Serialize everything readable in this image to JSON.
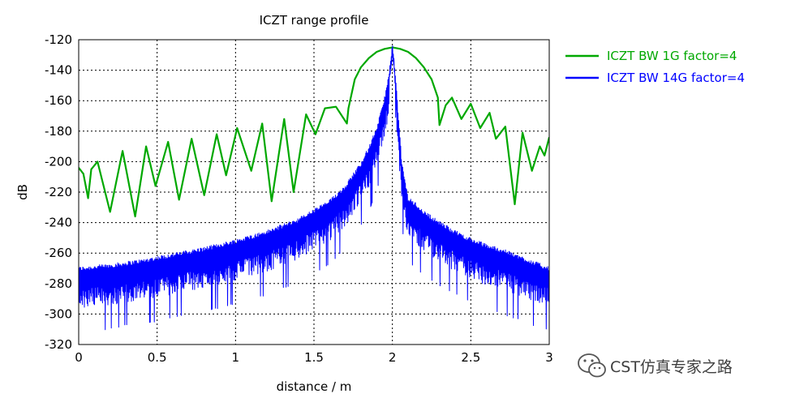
{
  "chart_data": {
    "type": "line",
    "title": "ICZT range profile",
    "xlabel": "distance / m",
    "ylabel": "dB",
    "xlim": [
      0,
      3
    ],
    "ylim": [
      -320,
      -120
    ],
    "xticks": [
      "0",
      "0.5",
      "1",
      "1.5",
      "2",
      "2.5",
      "3"
    ],
    "yticks": [
      "-120",
      "-140",
      "-160",
      "-180",
      "-200",
      "-220",
      "-240",
      "-260",
      "-280",
      "-300",
      "-320"
    ],
    "grid": true,
    "legend_position": "right",
    "series": [
      {
        "name": "ICZT BW 1G  factor=4",
        "color": "#00a800",
        "x": [
          0,
          0.03,
          0.06,
          0.08,
          0.12,
          0.2,
          0.28,
          0.36,
          0.43,
          0.49,
          0.57,
          0.64,
          0.72,
          0.8,
          0.88,
          0.94,
          1.01,
          1.1,
          1.17,
          1.23,
          1.31,
          1.37,
          1.45,
          1.51,
          1.57,
          1.64,
          1.71,
          1.72,
          1.76,
          1.8,
          1.85,
          1.9,
          1.95,
          2.0,
          2.05,
          2.1,
          2.15,
          2.2,
          2.25,
          2.29,
          2.3,
          2.34,
          2.38,
          2.44,
          2.5,
          2.56,
          2.62,
          2.66,
          2.72,
          2.78,
          2.83,
          2.89,
          2.94,
          2.97,
          3.0
        ],
        "y": [
          -204,
          -208,
          -224,
          -205,
          -200,
          -233,
          -193,
          -236,
          -190,
          -216,
          -187,
          -225,
          -185,
          -222,
          -182,
          -209,
          -178,
          -206,
          -175,
          -226,
          -172,
          -220,
          -169,
          -182,
          -165,
          -164,
          -175,
          -165,
          -146,
          -138,
          -132,
          -128,
          -126,
          -125,
          -126,
          -128,
          -132,
          -138,
          -146,
          -158,
          -176,
          -163,
          -158,
          -172,
          -162,
          -178,
          -168,
          -185,
          -177,
          -228,
          -181,
          -206,
          -190,
          -196,
          -184
        ]
      },
      {
        "name": "ICZT BW 14G factor=4",
        "color": "#0000ff",
        "x": [
          0,
          0.2,
          0.4,
          0.6,
          0.8,
          1.0,
          1.2,
          1.4,
          1.6,
          1.7,
          1.8,
          1.85,
          1.9,
          1.94,
          1.97,
          1.99,
          2.0,
          2.01,
          2.03,
          2.06,
          2.1,
          2.15,
          2.2,
          2.3,
          2.4,
          2.5,
          2.6,
          2.7,
          2.8,
          2.9,
          3.0
        ],
        "y": [
          -272,
          -270,
          -267,
          -263,
          -259,
          -254,
          -248,
          -240,
          -228,
          -218,
          -203,
          -193,
          -180,
          -165,
          -150,
          -135,
          -125,
          -135,
          -160,
          -203,
          -226,
          -230,
          -235,
          -242,
          -248,
          -253,
          -257,
          -260,
          -264,
          -268,
          -272
        ],
        "noise_band_db": 25
      }
    ]
  },
  "watermark": {
    "text": "CST仿真专家之路",
    "icon": "wechat-icon"
  }
}
